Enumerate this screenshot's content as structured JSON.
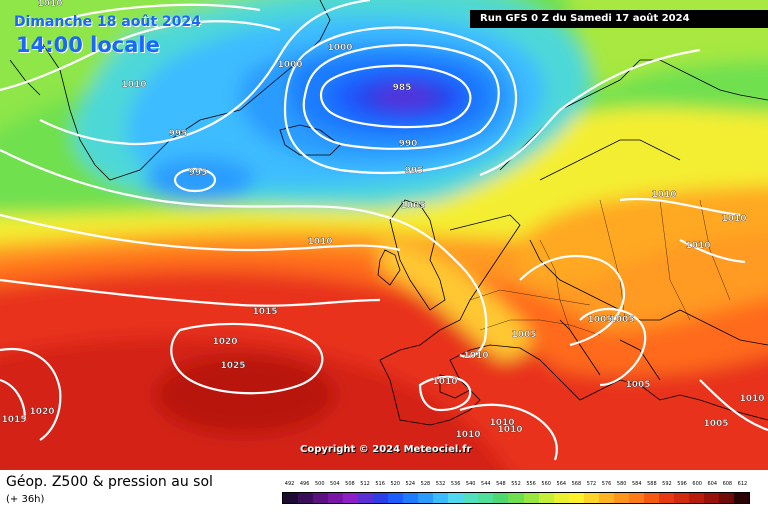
{
  "header": {
    "date": "Dimanche 18 août 2024",
    "time": "14:00 locale",
    "run": "Run GFS 0 Z du Samedi 17 août 2024"
  },
  "copyright": "Copyright © 2024 Meteociel.fr",
  "footer": {
    "title": "Géop. Z500 & pression au sol",
    "subtitle": "(+ 36h)"
  },
  "legend": {
    "values": [
      "492",
      "496",
      "500",
      "504",
      "508",
      "512",
      "516",
      "520",
      "524",
      "528",
      "532",
      "536",
      "540",
      "544",
      "548",
      "552",
      "556",
      "560",
      "564",
      "568",
      "572",
      "576",
      "580",
      "584",
      "588",
      "592",
      "596",
      "600",
      "604",
      "608",
      "612"
    ],
    "colors": [
      "#1e0b33",
      "#3a0f5a",
      "#5c1280",
      "#7a16a6",
      "#8e1fc4",
      "#5a2fd6",
      "#2c3fe6",
      "#1d5cff",
      "#1e7cff",
      "#2a9cff",
      "#3cbcff",
      "#4fd8f0",
      "#50e0c0",
      "#4ee09a",
      "#4ed870",
      "#6ee050",
      "#98e640",
      "#c4ee38",
      "#eaf230",
      "#fff02c",
      "#ffd428",
      "#ffb422",
      "#ff951c",
      "#ff7a18",
      "#f55a14",
      "#e83a10",
      "#d22a0e",
      "#b81c0c",
      "#98120a",
      "#6e0a08",
      "#2a0404"
    ]
  },
  "isobars": [
    {
      "text": "1010",
      "color": "#ffffff"
    },
    {
      "text": "1000",
      "color": "#ffffff"
    },
    {
      "text": "1000",
      "color": "#ffffff"
    },
    {
      "text": "985",
      "color": "#ffffff"
    },
    {
      "text": "990",
      "color": "#ffffff"
    },
    {
      "text": "995",
      "color": "#ffffff"
    },
    {
      "text": "995",
      "color": "#ffffff"
    },
    {
      "text": "995",
      "color": "#ffffff"
    },
    {
      "text": "1010",
      "color": "#ffffff"
    },
    {
      "text": "1005",
      "color": "#ffffff"
    },
    {
      "text": "1010",
      "color": "#ffffff"
    },
    {
      "text": "1010",
      "color": "#ffffff"
    },
    {
      "text": "1010",
      "color": "#ffffff"
    },
    {
      "text": "1010",
      "color": "#ffffff"
    },
    {
      "text": "1015",
      "color": "#ffffff"
    },
    {
      "text": "1020",
      "color": "#ffffff"
    },
    {
      "text": "1025",
      "color": "#ffffff"
    },
    {
      "text": "1020",
      "color": "#ffffff"
    },
    {
      "text": "1015",
      "color": "#ffffff"
    },
    {
      "text": "1005",
      "color": "#ffffff"
    },
    {
      "text": "1005",
      "color": "#ffffff"
    },
    {
      "text": "1005",
      "color": "#ffffff"
    },
    {
      "text": "1010",
      "color": "#ffffff"
    },
    {
      "text": "1010",
      "color": "#ffffff"
    },
    {
      "text": "1005",
      "color": "#ffffff"
    },
    {
      "text": "1010",
      "color": "#ffffff"
    },
    {
      "text": "1010",
      "color": "#ffffff"
    },
    {
      "text": "1010",
      "color": "#ffffff"
    },
    {
      "text": "1005",
      "color": "#ffffff"
    },
    {
      "text": "1010",
      "color": "#ffffff"
    }
  ]
}
